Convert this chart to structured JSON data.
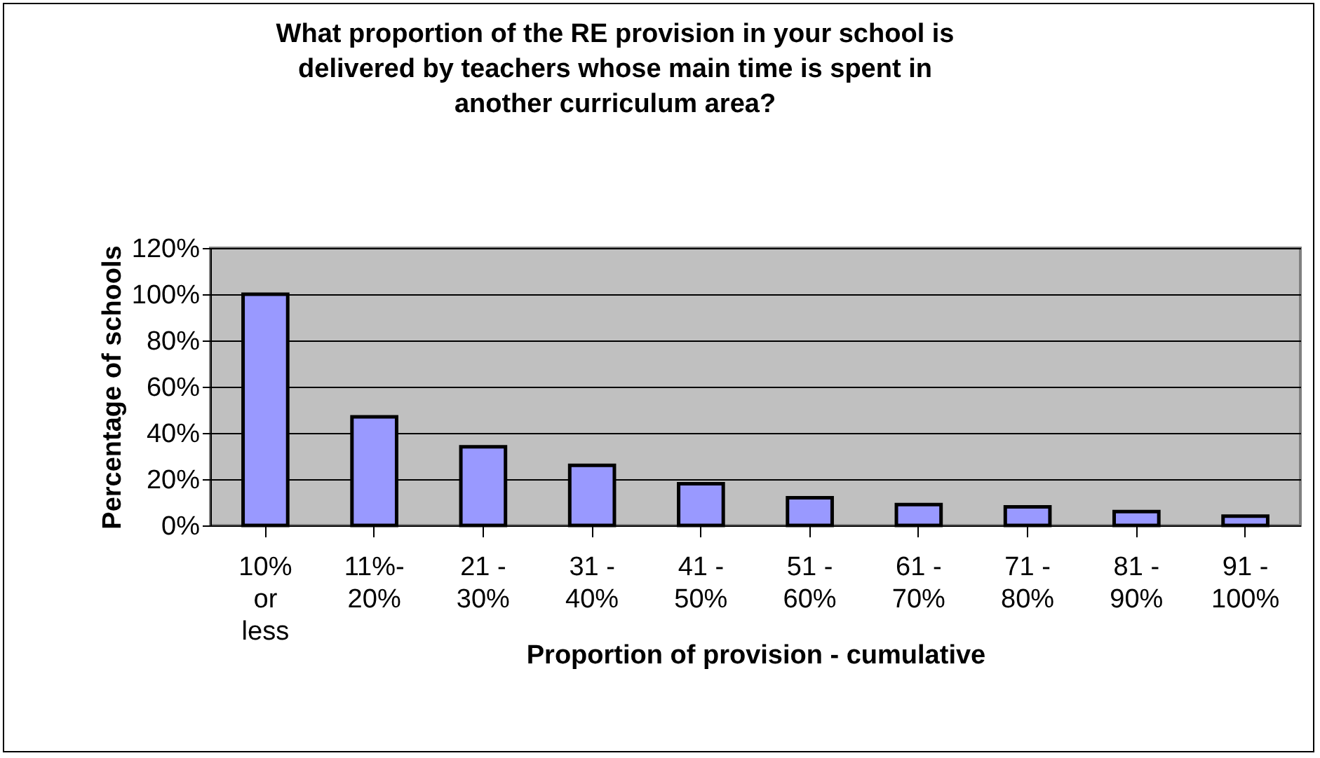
{
  "chart_data": {
    "type": "bar",
    "title": "What proportion of the RE provision in your school is\ndelivered by teachers whose main time is spent in\nanother curriculum area?",
    "xlabel": "Proportion of provision - cumulative",
    "ylabel": "Percentage of schools",
    "categories": [
      "10% or less",
      "11%-20%",
      "21 - 30%",
      "31 - 40%",
      "41 - 50%",
      "51 - 60%",
      "61 - 70%",
      "71 - 80%",
      "81 - 90%",
      "91 - 100%"
    ],
    "values": [
      100,
      47,
      34,
      26,
      18,
      12,
      9,
      8,
      6,
      4
    ],
    "color": "#9999ff",
    "ylim": [
      0,
      120
    ],
    "yticks": [
      {
        "value": 0,
        "label": "0%"
      },
      {
        "value": 20,
        "label": "20%"
      },
      {
        "value": 40,
        "label": "40%"
      },
      {
        "value": 60,
        "label": "60%"
      },
      {
        "value": 80,
        "label": "80%"
      },
      {
        "value": 100,
        "label": "100%"
      },
      {
        "value": 120,
        "label": "120%"
      }
    ],
    "grid": "y"
  }
}
